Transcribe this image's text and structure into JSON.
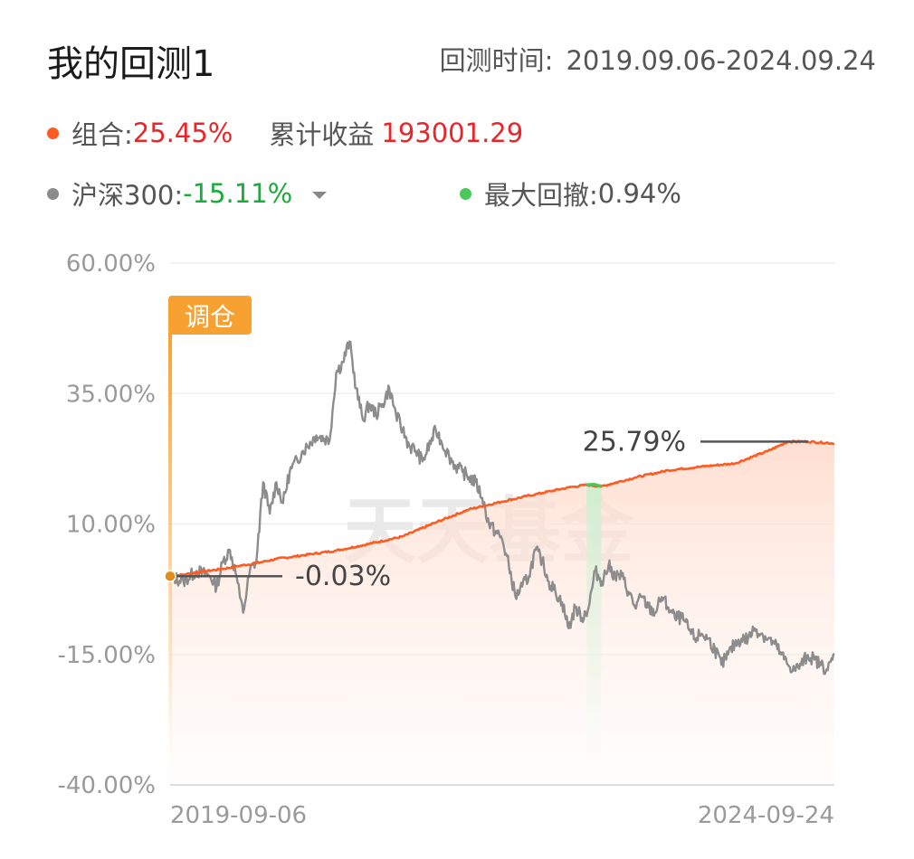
{
  "header": {
    "title": "我的回测1",
    "period_label": "回测时间:",
    "period_value": "2019.09.06-2024.09.24"
  },
  "legend": {
    "portfolio": {
      "label": "组合:",
      "value": "25.45%",
      "color": "#ff5a1f"
    },
    "cumulative": {
      "label": "累计收益",
      "value": "193001.29"
    },
    "benchmark": {
      "label": "沪深300:",
      "value": "-15.11%",
      "color": "#8c8c8c",
      "dropdown_icon": "caret-down-icon"
    },
    "drawdown": {
      "label": "最大回撤:",
      "value": "0.94%",
      "color": "#4cc75a"
    }
  },
  "chart_data": {
    "type": "line",
    "x_start": "2019-09-06",
    "x_end": "2024-09-24",
    "x_ticks": [
      "2019-09-06",
      "2024-09-24"
    ],
    "y_ticks": [
      "60.00%",
      "35.00%",
      "10.00%",
      "-15.00%",
      "-40.00%"
    ],
    "ylim": [
      -40,
      60
    ],
    "grid": true,
    "badge": "调仓",
    "watermark": "天天基金",
    "annotations": {
      "start": "-0.03%",
      "peak": "25.79%"
    },
    "drawdown_range": [
      0.627,
      0.649
    ],
    "series": [
      {
        "name": "组合",
        "color": "#ff5a1f",
        "x": [
          0,
          0.02,
          0.05,
          0.08,
          0.1,
          0.13,
          0.16,
          0.2,
          0.25,
          0.3,
          0.35,
          0.4,
          0.45,
          0.5,
          0.55,
          0.6,
          0.627,
          0.649,
          0.7,
          0.75,
          0.8,
          0.85,
          0.9,
          0.93,
          0.96,
          1.0
        ],
        "values": [
          0,
          0.3,
          0.9,
          1.4,
          1.9,
          2.5,
          3.3,
          4.0,
          4.9,
          6.2,
          7.6,
          10.3,
          12.8,
          14.3,
          15.7,
          17.0,
          17.5,
          17.2,
          18.9,
          20.3,
          21.0,
          21.6,
          24.0,
          25.79,
          25.79,
          25.45
        ]
      },
      {
        "name": "沪深300",
        "color": "#8c8c8c",
        "x": [
          0,
          0.02,
          0.04,
          0.06,
          0.07,
          0.08,
          0.09,
          0.1,
          0.105,
          0.11,
          0.12,
          0.13,
          0.14,
          0.15,
          0.16,
          0.17,
          0.18,
          0.2,
          0.22,
          0.24,
          0.25,
          0.26,
          0.27,
          0.28,
          0.29,
          0.3,
          0.31,
          0.32,
          0.33,
          0.34,
          0.35,
          0.36,
          0.37,
          0.38,
          0.4,
          0.42,
          0.43,
          0.44,
          0.45,
          0.46,
          0.47,
          0.48,
          0.5,
          0.51,
          0.52,
          0.53,
          0.54,
          0.55,
          0.56,
          0.57,
          0.58,
          0.59,
          0.6,
          0.61,
          0.62,
          0.63,
          0.64,
          0.65,
          0.66,
          0.67,
          0.68,
          0.69,
          0.7,
          0.71,
          0.72,
          0.73,
          0.74,
          0.75,
          0.76,
          0.77,
          0.78,
          0.79,
          0.8,
          0.81,
          0.82,
          0.83,
          0.84,
          0.85,
          0.86,
          0.87,
          0.88,
          0.89,
          0.9,
          0.91,
          0.92,
          0.93,
          0.94,
          0.95,
          0.96,
          0.97,
          0.98,
          0.99,
          1.0
        ],
        "values": [
          0,
          -1,
          1,
          0,
          -2,
          3,
          5,
          0,
          -4,
          -7,
          1,
          3,
          18,
          12,
          18,
          14,
          20,
          24,
          27,
          26,
          39,
          41,
          45,
          36,
          30,
          33,
          31,
          33,
          36,
          31,
          28,
          25,
          24,
          22,
          28,
          23,
          21,
          20,
          19,
          18,
          15,
          10,
          7,
          2,
          -4,
          -2,
          0,
          5,
          3,
          -1,
          -3,
          -5,
          -10,
          -6,
          -8,
          -6,
          1,
          -1,
          2,
          0,
          0,
          -3,
          -6,
          -4,
          -6,
          -7,
          -4,
          -6,
          -8,
          -8,
          -10,
          -12,
          -11,
          -12,
          -14,
          -17,
          -15,
          -13,
          -12,
          -12,
          -10,
          -11,
          -12,
          -13,
          -15,
          -17,
          -18,
          -17,
          -15.11,
          -16,
          -17,
          -18,
          -15.11
        ]
      }
    ]
  }
}
